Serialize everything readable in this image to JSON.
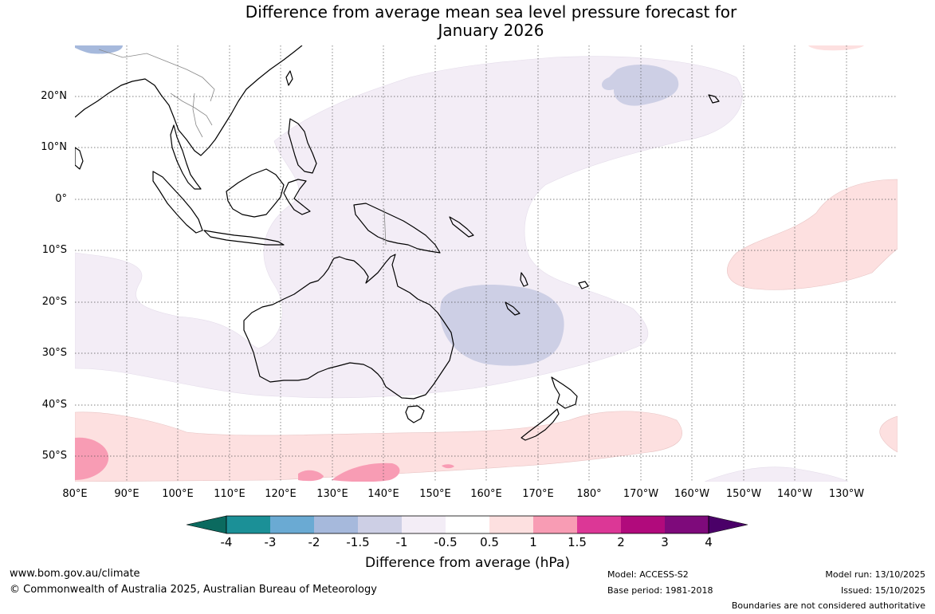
{
  "title_line1": "Difference from average mean sea level pressure forecast for",
  "title_line2": "January 2026",
  "lat_labels": [
    "20°N",
    "10°N",
    "0°",
    "10°S",
    "20°S",
    "30°S",
    "40°S",
    "50°S"
  ],
  "lon_labels": [
    "80°E",
    "90°E",
    "100°E",
    "110°E",
    "120°E",
    "130°E",
    "140°E",
    "150°E",
    "160°E",
    "170°E",
    "180°",
    "170°W",
    "160°W",
    "150°W",
    "140°W",
    "130°W"
  ],
  "colorbar": {
    "title": "Difference from average (hPa)",
    "ticks": [
      "-4",
      "-3",
      "-2",
      "-1.5",
      "-1",
      "-0.5",
      "0.5",
      "1",
      "1.5",
      "2",
      "3",
      "4"
    ],
    "colors": [
      "#0b6a5f",
      "#1b9097",
      "#6aaad3",
      "#a6b9dc",
      "#cdcfe5",
      "#f3edf6",
      "#ffffff",
      "#fde0e0",
      "#f89cb4",
      "#dc3796",
      "#b10a7c",
      "#7e0a7b",
      "#4a0068"
    ]
  },
  "footer": {
    "website": "www.bom.gov.au/climate",
    "copyright": "© Commonwealth of Australia 2025, Australian Bureau of Meteorology",
    "model": "Model: ACCESS-S2",
    "base_period": "Base period: 1981-2018",
    "model_run": "Model run: 13/10/2025",
    "issued": "Issued: 15/10/2025",
    "disclaimer": "Boundaries are not considered authoritative"
  }
}
